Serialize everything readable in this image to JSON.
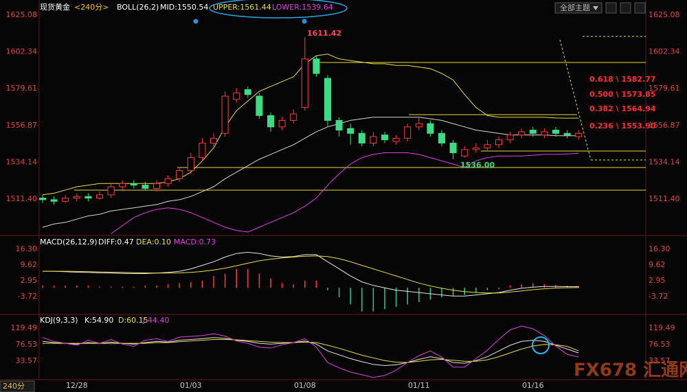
{
  "header": {
    "symbol": "现货黄金",
    "period": "<240分>",
    "theme_button": "全部主题",
    "period_badge": "240分",
    "watermark": "FX678 汇通网"
  },
  "chart_data": [
    {
      "type": "candlestick",
      "title": "BOLL(26,2)",
      "categories": [
        null,
        null,
        null,
        "12/28",
        null,
        null,
        null,
        null,
        null,
        null,
        null,
        null,
        null,
        "01/03",
        null,
        null,
        null,
        null,
        null,
        null,
        null,
        null,
        null,
        "01/08",
        null,
        null,
        null,
        null,
        null,
        null,
        null,
        null,
        null,
        "01/11",
        null,
        null,
        null,
        null,
        null,
        null,
        null,
        null,
        null,
        "01/16",
        null,
        null,
        null,
        null
      ],
      "open": [
        1512,
        1511,
        1510,
        1512,
        1513,
        1512,
        1514,
        1519,
        1521,
        1520,
        1518,
        1521,
        1524,
        1529,
        1537,
        1546,
        1552,
        1573,
        1579,
        1575,
        1563,
        1556,
        1560,
        1568,
        1598,
        1586,
        1560,
        1555,
        1552,
        1546,
        1551,
        1547,
        1549,
        1556,
        1558,
        1552,
        1546,
        1538,
        1542,
        1543,
        1545,
        1548,
        1551,
        1554,
        1551,
        1554,
        1552,
        1550
      ],
      "high": [
        1514,
        1513,
        1514,
        1515,
        1515,
        1516,
        1521,
        1523,
        1523,
        1522,
        1523,
        1526,
        1531,
        1540,
        1549,
        1552,
        1578,
        1580,
        1581,
        1577,
        1565,
        1562,
        1567,
        1611.42,
        1600,
        1588,
        1562,
        1558,
        1554,
        1553,
        1553,
        1551,
        1558,
        1562,
        1560,
        1554,
        1548,
        1544,
        1546,
        1548,
        1550,
        1553,
        1555,
        1556,
        1555,
        1556,
        1554,
        1554
      ],
      "low": [
        1509,
        1508,
        1509,
        1510,
        1510,
        1511,
        1512,
        1517,
        1518,
        1517,
        1516,
        1519,
        1522,
        1527,
        1535,
        1544,
        1550,
        1571,
        1574,
        1561,
        1553,
        1554,
        1558,
        1566,
        1587,
        1556,
        1550,
        1545,
        1544,
        1544,
        1546,
        1545,
        1547,
        1554,
        1550,
        1544,
        1536,
        1537,
        1540,
        1541,
        1543,
        1546,
        1549,
        1550,
        1549,
        1550,
        1549,
        1548
      ],
      "close": [
        1511,
        1510,
        1512,
        1513,
        1512,
        1514,
        1519,
        1521,
        1520,
        1518,
        1521,
        1524,
        1529,
        1537,
        1546,
        1549,
        1575,
        1577,
        1576,
        1563,
        1556,
        1560,
        1564,
        1598,
        1589,
        1560,
        1554,
        1552,
        1546,
        1550,
        1548,
        1549,
        1556,
        1558,
        1552,
        1546,
        1540,
        1542,
        1543,
        1545,
        1548,
        1551,
        1553,
        1552,
        1553,
        1552,
        1551,
        1552
      ],
      "up_color": "#ff3b3b",
      "down_color": "#3ddc84",
      "series": [
        {
          "name": "MID:1550.54",
          "color": "#d8d8d8",
          "values": [
            1494,
            1496,
            1497,
            1499,
            1501,
            1502,
            1504,
            1505,
            1506,
            1507,
            1508,
            1510,
            1511,
            1513,
            1516,
            1519,
            1524,
            1528,
            1532,
            1536,
            1539,
            1542,
            1545,
            1549,
            1553,
            1556,
            1558,
            1560,
            1561,
            1562,
            1562,
            1562,
            1562,
            1562,
            1561,
            1560,
            1558,
            1556,
            1554,
            1553,
            1552,
            1551,
            1551,
            1551,
            1551,
            1550.6,
            1550.5,
            1550.54
          ]
        },
        {
          "name": "UPPER:1561.44",
          "color": "#e8e040",
          "values": [
            1514,
            1515,
            1517,
            1519,
            1520,
            1521,
            1521,
            1521,
            1521,
            1521,
            1521,
            1522,
            1524,
            1528,
            1535,
            1543,
            1556,
            1566,
            1572,
            1578,
            1581,
            1584,
            1587,
            1595,
            1600,
            1601,
            1598,
            1597,
            1596,
            1595,
            1595,
            1594,
            1594,
            1593,
            1592,
            1589,
            1585,
            1576,
            1568,
            1563,
            1562,
            1562,
            1562,
            1562,
            1562,
            1561.5,
            1561.4,
            1561.44
          ]
        },
        {
          "name": "LOWER:1539.64",
          "color": "#e040e0",
          "values": [
            null,
            null,
            null,
            null,
            null,
            null,
            1490,
            1495,
            1500,
            1503,
            1505,
            1506,
            1505,
            1503,
            1500,
            1497,
            1494,
            1492,
            1491,
            1494,
            1497,
            1500,
            1503,
            1507,
            1512,
            1520,
            1527,
            1533,
            1537,
            1539,
            1540,
            1540,
            1540,
            1539,
            1537,
            1535,
            1533,
            1531,
            1535,
            1537,
            1538,
            1538,
            1538,
            1538.5,
            1539,
            1539,
            1539.3,
            1539.64
          ]
        }
      ],
      "ylim": [
        1490.17,
        1625.08
      ],
      "yticks": [
        1625.08,
        1602.34,
        1579.61,
        1556.87,
        1534.14,
        {
          "value": 1511.4,
          "label": "1511.40"
        }
      ],
      "annotations": [
        "1611.42",
        "1536.00",
        "0.618 \\ 1582.77",
        "0.500 \\ 1573.85",
        "0.382 \\ 1564.94",
        "0.236 \\ 1553.90"
      ]
    },
    {
      "type": "macd",
      "title": "MACD(26,12,9)",
      "series": [
        {
          "name": "DIFF:0.47",
          "color": "#e8e8e8",
          "values": [
            7,
            7,
            6.8,
            6.6,
            6.5,
            6.3,
            6.2,
            6.1,
            6,
            6,
            6.2,
            6.5,
            7,
            8,
            9.5,
            11,
            13,
            14.5,
            15,
            14.5,
            13.5,
            13,
            13.2,
            14,
            14,
            11,
            8,
            5,
            2.5,
            1,
            0,
            -1,
            -1.5,
            -2,
            -2.5,
            -3,
            -3.5,
            -3.5,
            -3,
            -2.5,
            -2,
            -1,
            -0.2,
            0.3,
            0.6,
            0.6,
            0.5,
            0.47
          ]
        },
        {
          "name": "DEA:0.10",
          "color": "#e8e040",
          "values": [
            7,
            7,
            7,
            6.9,
            6.8,
            6.7,
            6.6,
            6.5,
            6.4,
            6.3,
            6.2,
            6.2,
            6.3,
            6.5,
            6.9,
            7.5,
            8.3,
            9.3,
            10.4,
            11.4,
            12.1,
            12.6,
            13,
            13.3,
            13.5,
            13.2,
            12.3,
            11,
            9.5,
            8,
            6.5,
            5,
            3.5,
            2,
            0.8,
            -0.2,
            -1,
            -1.6,
            -2,
            -2.2,
            -2.2,
            -1.8,
            -1.3,
            -0.8,
            -0.4,
            -0.1,
            0.05,
            0.1
          ]
        },
        {
          "name": "MACD:0.73",
          "color": "#e040e0",
          "bars": true,
          "values": [
            1,
            1,
            1,
            1,
            1,
            0.5,
            0.5,
            0.5,
            0.5,
            1,
            1,
            1.5,
            2,
            2.5,
            3,
            5,
            6,
            8,
            8,
            6,
            4,
            2,
            1.5,
            3,
            3,
            -1,
            -4,
            -7,
            -10,
            -10,
            -9,
            -8,
            -7,
            -6,
            -5,
            -4,
            -3.5,
            -3,
            -2,
            -1,
            -0.5,
            1,
            1.5,
            2,
            1.5,
            1.2,
            1,
            0.73
          ]
        }
      ],
      "up_color": "#ff3b3b",
      "down_color": "#2ec98c",
      "ylim": [
        -10.37,
        16.3
      ],
      "yticks": [
        {
          "value": 16.3,
          "label": "16.30"
        },
        9.62,
        2.95,
        -3.72
      ]
    },
    {
      "type": "kdj",
      "title": "KDJ(9,3,3)",
      "series": [
        {
          "name": "K:54.90",
          "color": "#e8e8e8",
          "values": [
            85,
            82,
            80,
            78,
            82,
            80,
            83,
            80,
            78,
            82,
            85,
            83,
            88,
            90,
            92,
            95,
            93,
            88,
            85,
            80,
            78,
            80,
            82,
            86,
            78,
            60,
            50,
            40,
            32,
            25,
            22,
            24,
            30,
            38,
            45,
            40,
            30,
            28,
            35,
            45,
            60,
            75,
            85,
            88,
            85,
            75,
            65,
            54.9
          ]
        },
        {
          "name": "D:60.15",
          "color": "#e8e040",
          "values": [
            80,
            80,
            80,
            80,
            80,
            80,
            80,
            80,
            80,
            80,
            82,
            82,
            84,
            86,
            88,
            90,
            90,
            89,
            87,
            85,
            83,
            82,
            82,
            83,
            82,
            75,
            67,
            58,
            49,
            42,
            35,
            31,
            30,
            33,
            37,
            38,
            36,
            33,
            33,
            37,
            45,
            55,
            65,
            73,
            77,
            76,
            72,
            60.15
          ]
        },
        {
          "name": "J:44.40",
          "color": "#e040e0",
          "values": [
            95,
            85,
            80,
            75,
            88,
            80,
            90,
            78,
            72,
            88,
            92,
            85,
            96,
            98,
            100,
            105,
            99,
            86,
            80,
            70,
            68,
            76,
            82,
            92,
            70,
            30,
            16,
            5,
            -2,
            -9,
            -4,
            10,
            30,
            48,
            60,
            44,
            18,
            18,
            40,
            62,
            90,
            115,
            125,
            118,
            100,
            73,
            51,
            44.4
          ]
        }
      ],
      "ylim": [
        -18.3,
        119.49
      ],
      "yticks": [
        119.49,
        76.53,
        33.57
      ]
    }
  ]
}
